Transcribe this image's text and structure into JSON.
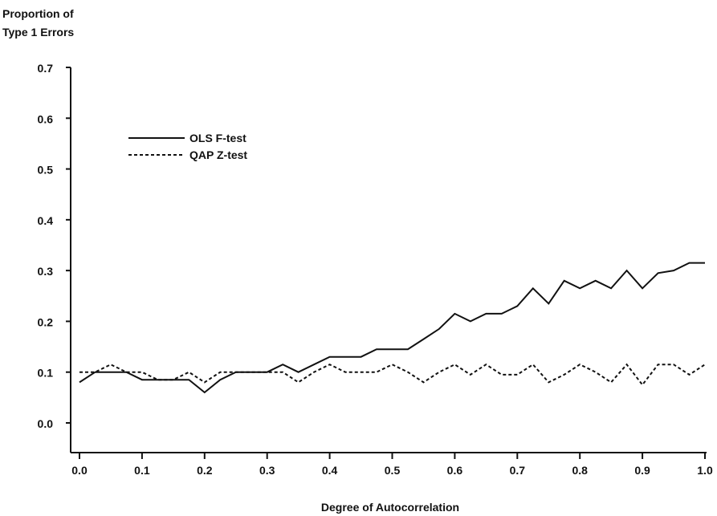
{
  "chart_data": {
    "type": "line",
    "ylabel": [
      "Proportion of",
      "Type 1 Errors"
    ],
    "xlabel": "Degree of Autocorrelation",
    "xlim": [
      0.0,
      1.0
    ],
    "ylim": [
      -0.05,
      0.7
    ],
    "x_ticks": [
      "0.0",
      "0.1",
      "0.2",
      "0.3",
      "0.4",
      "0.5",
      "0.6",
      "0.7",
      "0.8",
      "0.9",
      "1.0"
    ],
    "y_ticks": [
      "0.0",
      "0.1",
      "0.2",
      "0.3",
      "0.4",
      "0.5",
      "0.6",
      "0.7"
    ],
    "grid": false,
    "legend_position": "top-left",
    "series": [
      {
        "name": "OLS F-test",
        "style": "solid",
        "x": [
          0.0,
          0.025,
          0.05,
          0.075,
          0.1,
          0.125,
          0.15,
          0.175,
          0.2,
          0.225,
          0.25,
          0.275,
          0.3,
          0.325,
          0.35,
          0.375,
          0.4,
          0.425,
          0.45,
          0.475,
          0.5,
          0.525,
          0.55,
          0.575,
          0.6,
          0.625,
          0.65,
          0.675,
          0.7,
          0.725,
          0.75,
          0.775,
          0.8,
          0.825,
          0.85,
          0.875,
          0.9,
          0.925,
          0.95,
          0.975,
          1.0
        ],
        "values": [
          0.08,
          0.1,
          0.1,
          0.1,
          0.085,
          0.085,
          0.085,
          0.085,
          0.06,
          0.085,
          0.1,
          0.1,
          0.1,
          0.115,
          0.1,
          0.115,
          0.13,
          0.13,
          0.13,
          0.145,
          0.145,
          0.145,
          0.165,
          0.185,
          0.215,
          0.2,
          0.215,
          0.215,
          0.23,
          0.265,
          0.235,
          0.28,
          0.265,
          0.28,
          0.265,
          0.3,
          0.265,
          0.295,
          0.3,
          0.315,
          0.315
        ]
      },
      {
        "name": "QAP Z-test",
        "style": "dashed",
        "x": [
          0.0,
          0.025,
          0.05,
          0.075,
          0.1,
          0.125,
          0.15,
          0.175,
          0.2,
          0.225,
          0.25,
          0.275,
          0.3,
          0.325,
          0.35,
          0.375,
          0.4,
          0.425,
          0.45,
          0.475,
          0.5,
          0.525,
          0.55,
          0.575,
          0.6,
          0.625,
          0.65,
          0.675,
          0.7,
          0.725,
          0.75,
          0.775,
          0.8,
          0.825,
          0.85,
          0.875,
          0.9,
          0.925,
          0.95,
          0.975,
          1.0
        ],
        "values": [
          0.1,
          0.1,
          0.115,
          0.1,
          0.1,
          0.085,
          0.085,
          0.1,
          0.08,
          0.1,
          0.1,
          0.1,
          0.1,
          0.1,
          0.08,
          0.1,
          0.115,
          0.1,
          0.1,
          0.1,
          0.115,
          0.1,
          0.08,
          0.1,
          0.115,
          0.095,
          0.115,
          0.095,
          0.095,
          0.115,
          0.08,
          0.095,
          0.115,
          0.1,
          0.08,
          0.115,
          0.075,
          0.115,
          0.115,
          0.095,
          0.115
        ]
      }
    ]
  }
}
